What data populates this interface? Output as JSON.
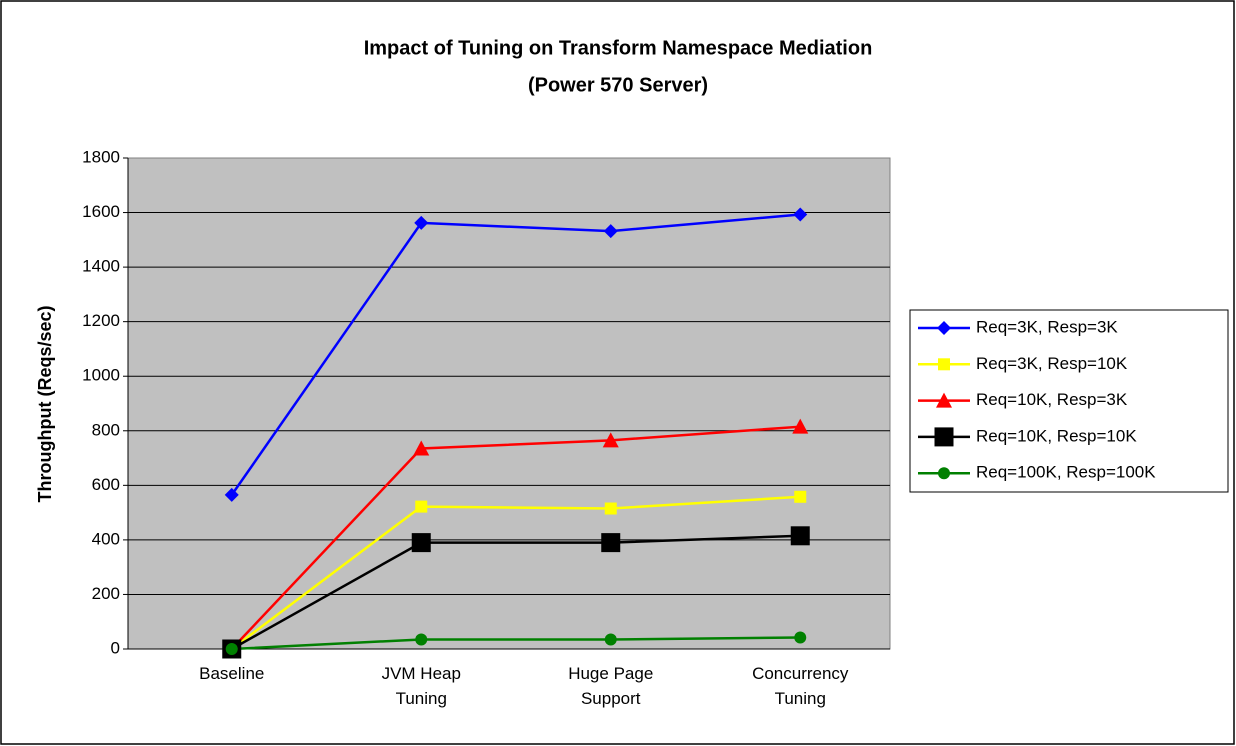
{
  "chart_data": {
    "type": "line",
    "title": "Impact of Tuning on Transform Namespace Mediation",
    "subtitle": "(Power 570 Server)",
    "y_label": "Throughput (Reqs/sec)",
    "categories": [
      "Baseline",
      "JVM Heap Tuning",
      "Huge Page Support",
      "Concurrency Tuning"
    ],
    "ylim": [
      0,
      1800
    ],
    "yticks": [
      0,
      200,
      400,
      600,
      800,
      1000,
      1200,
      1400,
      1600,
      1800
    ],
    "grid": true,
    "legend": "right",
    "series": [
      {
        "name": "Req=3K, Resp=3K",
        "color": "#0000ff",
        "marker": "diamond",
        "values": [
          565,
          1562,
          1532,
          1593
        ]
      },
      {
        "name": "Req=3K, Resp=10K",
        "color": "#ffff00",
        "marker": "square",
        "values": [
          0,
          522,
          515,
          558
        ]
      },
      {
        "name": "Req=10K, Resp=3K",
        "color": "#ff0000",
        "marker": "triangle",
        "values": [
          0,
          735,
          765,
          815
        ]
      },
      {
        "name": "Req=10K, Resp=10K",
        "color": "#000000",
        "marker": "big-square",
        "values": [
          0,
          390,
          390,
          415
        ]
      },
      {
        "name": "Req=100K, Resp=100K",
        "color": "#008000",
        "marker": "circle",
        "values": [
          0,
          35,
          35,
          42
        ]
      }
    ]
  }
}
